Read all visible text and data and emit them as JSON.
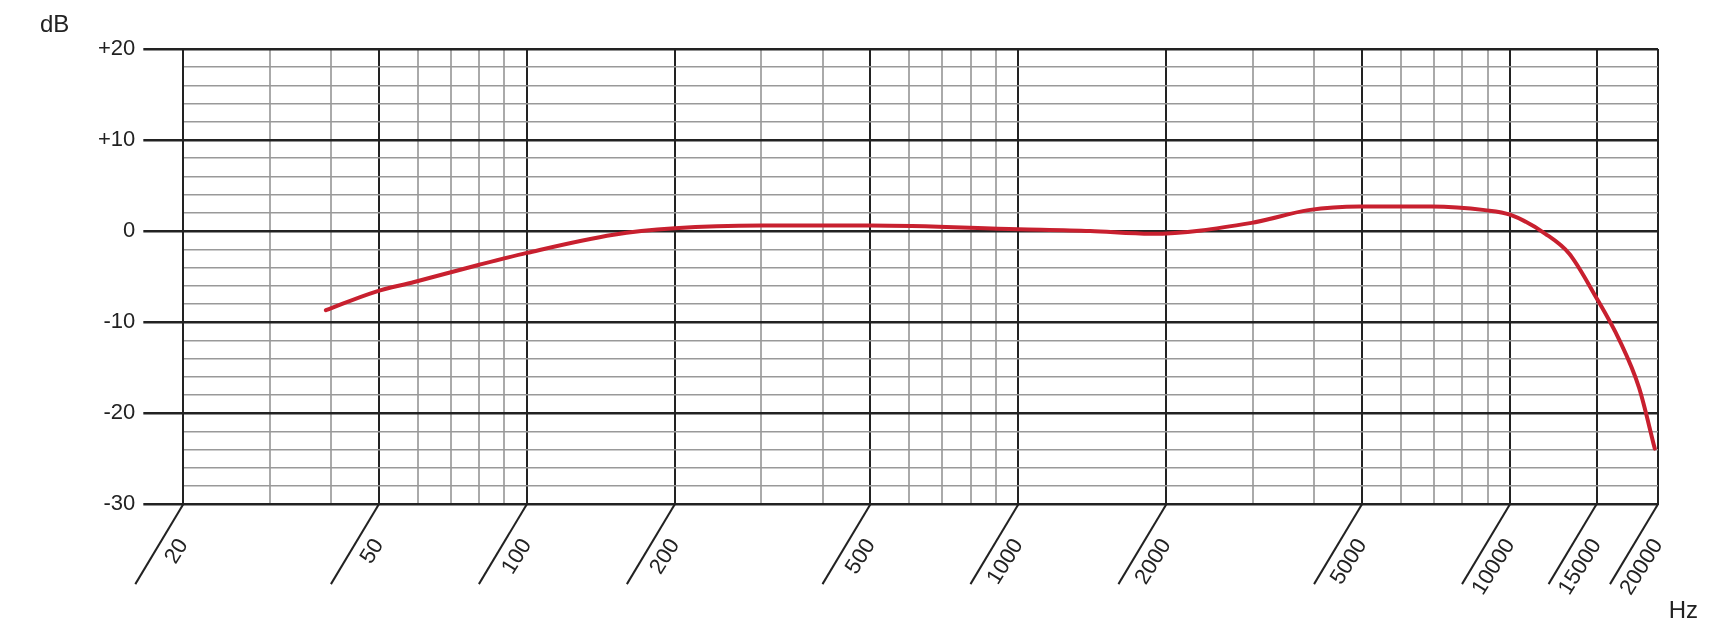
{
  "chart_data": {
    "type": "line",
    "xlabel": "Hz",
    "ylabel": "dB",
    "log": "x",
    "grid": true,
    "xlim": [
      20,
      20000
    ],
    "xticks": [
      20,
      {
        "value": 30,
        "label": null
      },
      {
        "value": 40,
        "label": null
      },
      50,
      {
        "value": 60,
        "label": null
      },
      {
        "value": 70,
        "label": null
      },
      {
        "value": 80,
        "label": null
      },
      {
        "value": 90,
        "label": null
      },
      100,
      200,
      {
        "value": 300,
        "label": null
      },
      {
        "value": 400,
        "label": null
      },
      500,
      {
        "value": 600,
        "label": null
      },
      {
        "value": 700,
        "label": null
      },
      {
        "value": 800,
        "label": null
      },
      {
        "value": 900,
        "label": null
      },
      1000,
      2000,
      {
        "value": 3000,
        "label": null
      },
      {
        "value": 4000,
        "label": null
      },
      5000,
      {
        "value": 6000,
        "label": null
      },
      {
        "value": 7000,
        "label": null
      },
      {
        "value": 8000,
        "label": null
      },
      {
        "value": 9000,
        "label": null
      },
      10000,
      15000,
      20000
    ],
    "ylim": [
      -30,
      20
    ],
    "yticks": [
      -30,
      {
        "value": -28,
        "label": null
      },
      {
        "value": -26,
        "label": null
      },
      {
        "value": -24,
        "label": null
      },
      {
        "value": -22,
        "label": null
      },
      -20,
      {
        "value": -18,
        "label": null
      },
      {
        "value": -16,
        "label": null
      },
      {
        "value": -14,
        "label": null
      },
      {
        "value": -12,
        "label": null
      },
      -10,
      {
        "value": -8,
        "label": null
      },
      {
        "value": -6,
        "label": null
      },
      {
        "value": -4,
        "label": null
      },
      {
        "value": -2,
        "label": null
      },
      0,
      {
        "value": 2,
        "label": null
      },
      {
        "value": 4,
        "label": null
      },
      {
        "value": 6,
        "label": null
      },
      {
        "value": 8,
        "label": null
      },
      {
        "value": 10,
        "label": "+10"
      },
      {
        "value": 12,
        "label": null
      },
      {
        "value": 14,
        "label": null
      },
      {
        "value": 16,
        "label": null
      },
      {
        "value": 18,
        "label": null
      },
      {
        "value": 20,
        "label": "+20"
      }
    ],
    "series": [
      {
        "color": "#c8202f",
        "x": [
          39,
          49,
          59,
          80,
          100,
          150,
          200,
          300,
          500,
          1000,
          1400,
          1860,
          2980,
          3890,
          4940,
          6930,
          8890,
          10000,
          11800,
          13200,
          14900,
          16700,
          18300,
          19700
        ],
        "values": [
          -8.7,
          -6.7,
          -5.6,
          -3.7,
          -2.4,
          -0.4,
          0.3,
          0.6,
          0.6,
          0.2,
          0,
          -0.3,
          0.9,
          2.3,
          2.7,
          2.7,
          2.3,
          1.8,
          -0.3,
          -2.5,
          -7.1,
          -12,
          -17.2,
          -23.9
        ]
      }
    ]
  }
}
